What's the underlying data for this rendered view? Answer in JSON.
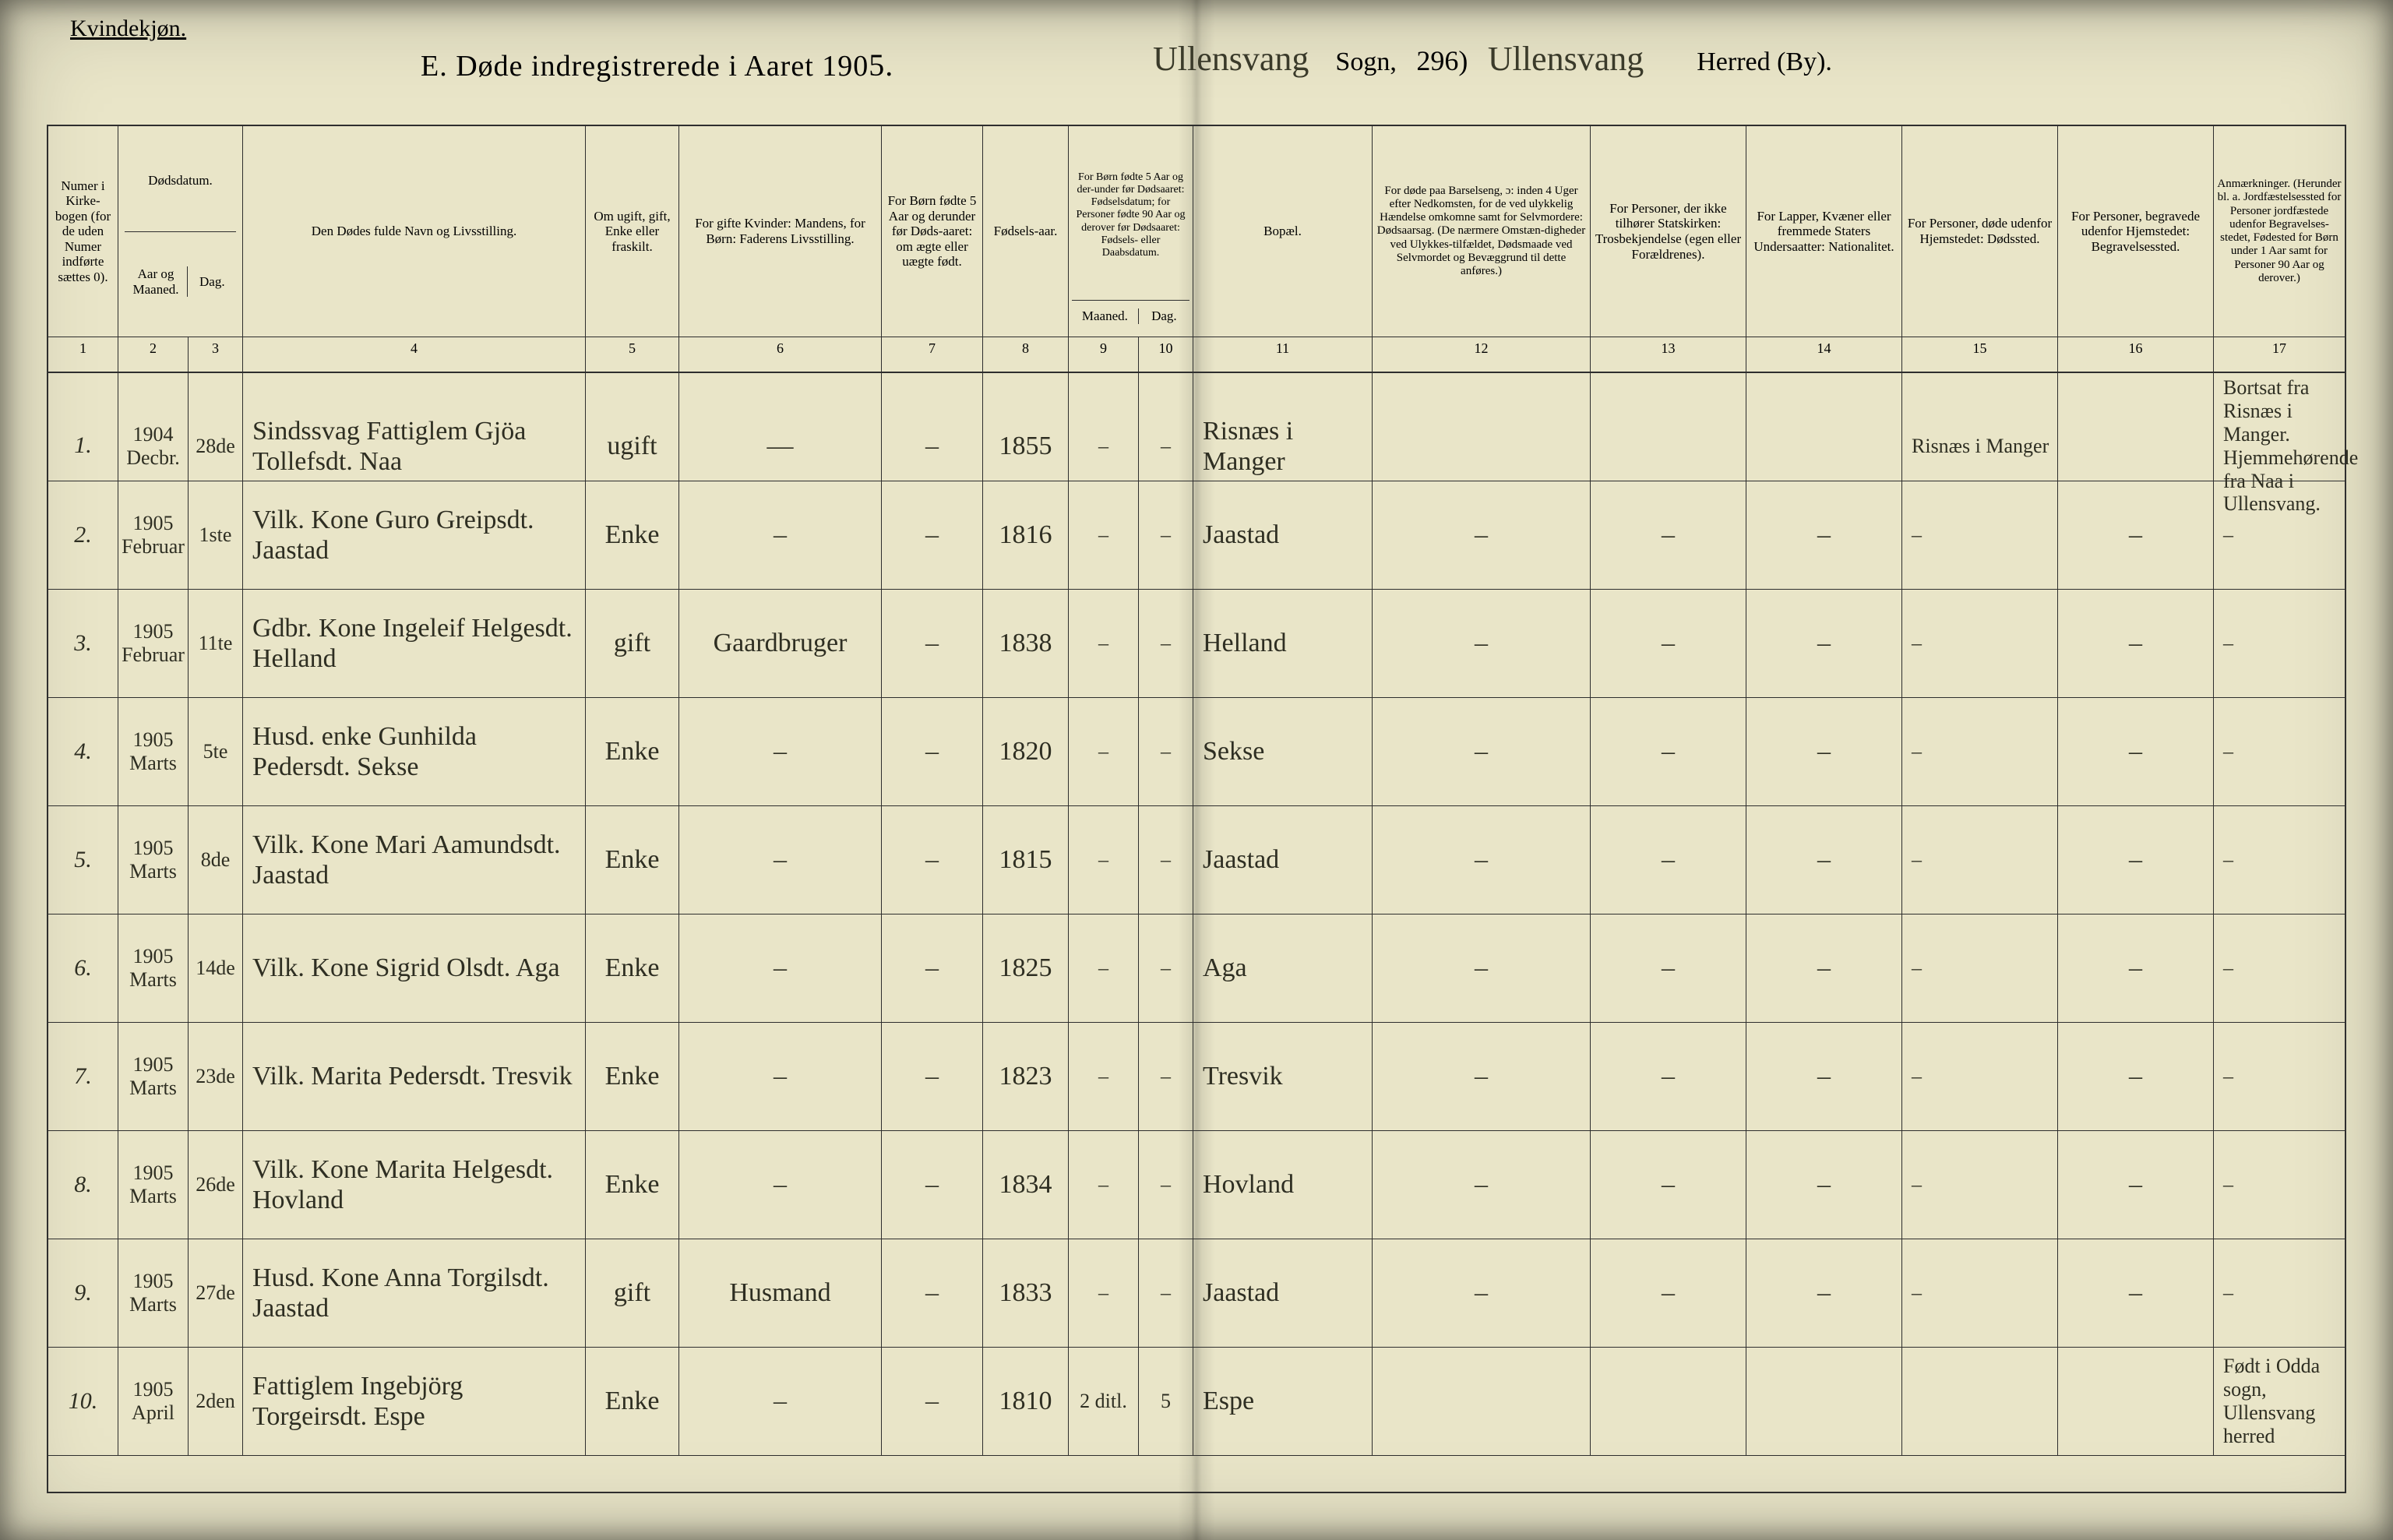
{
  "colors": {
    "paper": "#e9e5c8",
    "ink": "#2e2e2e",
    "handwriting": "#2e2e22"
  },
  "header": {
    "gender_label": "Kvindekjøn.",
    "title_prefix": "E.   Døde indregistrerede i Aaret 190",
    "title_year_hand": "5.",
    "sogn_hand": "Ullensvang",
    "sogn_printed": "Sogn,",
    "page_no": "296)",
    "herred_hand": "Ullensvang",
    "herred_printed": "Herred (By)."
  },
  "columns": {
    "1": "Numer i Kirke-bogen (for de uden Numer indførte sættes 0).",
    "2_3_top": "Dødsdatum.",
    "2": "Aar og Maaned.",
    "3": "Dag.",
    "4": "Den Dødes fulde Navn og Livsstilling.",
    "5": "Om ugift, gift, Enke eller fraskilt.",
    "6": "For gifte Kvinder: Mandens, for Børn: Faderens Livsstilling.",
    "7": "For Børn fødte 5 Aar og derunder før Døds-aaret: om ægte eller uægte født.",
    "8": "Fødsels-aar.",
    "9_10_top": "For Børn fødte 5 Aar og der-under før Dødsaaret: Fødselsdatum; for Personer fødte 90 Aar og derover før Dødsaaret: Fødsels- eller Daabsdatum.",
    "9": "Maaned.",
    "10": "Dag.",
    "11": "Bopæl.",
    "12": "For døde paa Barselseng, ɔ: inden 4 Uger efter Nedkomsten, for de ved ulykkelig Hændelse omkomne samt for Selvmordere: Dødsaarsag. (De nærmere Omstæn-digheder ved Ulykkes-tilfældet, Dødsmaade ved Selvmordet og Bevæggrund til dette anføres.)",
    "13": "For Personer, der ikke tilhører Statskirken: Trosbekjendelse (egen eller Forældrenes).",
    "14": "For Lapper, Kvæner eller fremmede Staters Undersaatter: Nationalitet.",
    "15": "For Personer, døde udenfor Hjemstedet: Dødssted.",
    "16": "For Personer, begravede udenfor Hjemstedet: Begravelsessted.",
    "17": "Anmærkninger. (Herunder bl. a. Jordfæstelsessted for Personer jordfæstede udenfor Begravelses-stedet, Fødested for Børn under 1 Aar samt for Personer 90 Aar og derover.)"
  },
  "col_numbers": [
    "1",
    "2",
    "3",
    "4",
    "5",
    "6",
    "7",
    "8",
    "9",
    "10",
    "11",
    "12",
    "13",
    "14",
    "15",
    "16",
    "17"
  ],
  "rows": [
    {
      "n": "1.",
      "year_month": "1904 Decbr.",
      "day": "28de",
      "name": "Sindssvag Fattiglem Gjöa Tollefsdt. Naa",
      "status": "ugift",
      "husband": "—",
      "legit": "–",
      "birth_year": "1855",
      "b_month": "–",
      "b_day": "–",
      "residence": "Risnæs i Manger",
      "cause": "",
      "faith": "",
      "nation": "",
      "death_place": "Risnæs i Manger",
      "burial": "",
      "remarks": "Bortsat fra Risnæs i Manger. Hjemmehørende fra Naa i Ullensvang."
    },
    {
      "n": "2.",
      "year_month": "1905 Februar",
      "day": "1ste",
      "name": "Vilk. Kone Guro Greipsdt. Jaastad",
      "status": "Enke",
      "husband": "–",
      "legit": "–",
      "birth_year": "1816",
      "b_month": "–",
      "b_day": "–",
      "residence": "Jaastad",
      "cause": "–",
      "faith": "–",
      "nation": "–",
      "death_place": "–",
      "burial": "–",
      "remarks": "–"
    },
    {
      "n": "3.",
      "year_month": "1905 Februar",
      "day": "11te",
      "name": "Gdbr. Kone Ingeleif Helgesdt. Helland",
      "status": "gift",
      "husband": "Gaardbruger",
      "legit": "–",
      "birth_year": "1838",
      "b_month": "–",
      "b_day": "–",
      "residence": "Helland",
      "cause": "–",
      "faith": "–",
      "nation": "–",
      "death_place": "–",
      "burial": "–",
      "remarks": "–"
    },
    {
      "n": "4.",
      "year_month": "1905 Marts",
      "day": "5te",
      "name": "Husd. enke Gunhilda Pedersdt. Sekse",
      "status": "Enke",
      "husband": "–",
      "legit": "–",
      "birth_year": "1820",
      "b_month": "–",
      "b_day": "–",
      "residence": "Sekse",
      "cause": "–",
      "faith": "–",
      "nation": "–",
      "death_place": "–",
      "burial": "–",
      "remarks": "–"
    },
    {
      "n": "5.",
      "year_month": "1905 Marts",
      "day": "8de",
      "name": "Vilk. Kone Mari Aamundsdt. Jaastad",
      "status": "Enke",
      "husband": "–",
      "legit": "–",
      "birth_year": "1815",
      "b_month": "–",
      "b_day": "–",
      "residence": "Jaastad",
      "cause": "–",
      "faith": "–",
      "nation": "–",
      "death_place": "–",
      "burial": "–",
      "remarks": "–"
    },
    {
      "n": "6.",
      "year_month": "1905 Marts",
      "day": "14de",
      "name": "Vilk. Kone Sigrid Olsdt. Aga",
      "status": "Enke",
      "husband": "–",
      "legit": "–",
      "birth_year": "1825",
      "b_month": "–",
      "b_day": "–",
      "residence": "Aga",
      "cause": "–",
      "faith": "–",
      "nation": "–",
      "death_place": "–",
      "burial": "–",
      "remarks": "–"
    },
    {
      "n": "7.",
      "year_month": "1905 Marts",
      "day": "23de",
      "name": "Vilk. Marita Pedersdt. Tresvik",
      "status": "Enke",
      "husband": "–",
      "legit": "–",
      "birth_year": "1823",
      "b_month": "–",
      "b_day": "–",
      "residence": "Tresvik",
      "cause": "–",
      "faith": "–",
      "nation": "–",
      "death_place": "–",
      "burial": "–",
      "remarks": "–"
    },
    {
      "n": "8.",
      "year_month": "1905 Marts",
      "day": "26de",
      "name": "Vilk. Kone Marita Helgesdt. Hovland",
      "status": "Enke",
      "husband": "–",
      "legit": "–",
      "birth_year": "1834",
      "b_month": "–",
      "b_day": "–",
      "residence": "Hovland",
      "cause": "–",
      "faith": "–",
      "nation": "–",
      "death_place": "–",
      "burial": "–",
      "remarks": "–"
    },
    {
      "n": "9.",
      "year_month": "1905 Marts",
      "day": "27de",
      "name": "Husd. Kone Anna Torgilsdt. Jaastad",
      "status": "gift",
      "husband": "Husmand",
      "legit": "–",
      "birth_year": "1833",
      "b_month": "–",
      "b_day": "–",
      "residence": "Jaastad",
      "cause": "–",
      "faith": "–",
      "nation": "–",
      "death_place": "–",
      "burial": "–",
      "remarks": "–"
    },
    {
      "n": "10.",
      "year_month": "1905 April",
      "day": "2den",
      "name": "Fattiglem Ingebjörg Torgeirsdt. Espe",
      "status": "Enke",
      "husband": "–",
      "legit": "–",
      "birth_year": "1810",
      "b_month": "2 ditl.",
      "b_day": "5",
      "residence": "Espe",
      "cause": "",
      "faith": "",
      "nation": "",
      "death_place": "",
      "burial": "",
      "remarks": "Født i Odda sogn, Ullensvang herred"
    }
  ]
}
